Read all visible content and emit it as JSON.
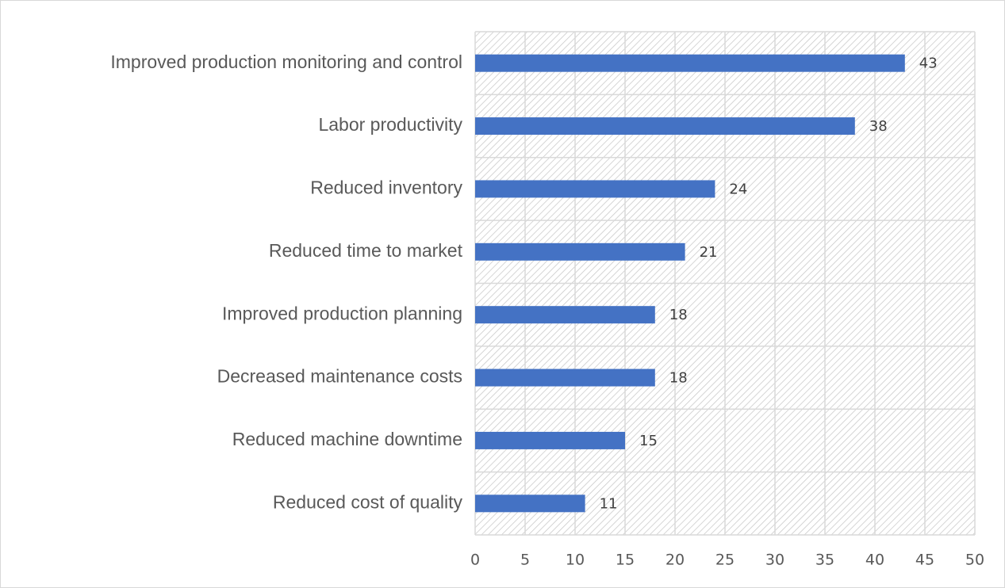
{
  "chart_data": {
    "type": "bar",
    "orientation": "horizontal",
    "categories": [
      "Improved production monitoring and control",
      "Labor productivity",
      "Reduced inventory",
      "Reduced time to market",
      "Improved production planning",
      "Decreased maintenance costs",
      "Reduced machine downtime",
      "Reduced cost of quality"
    ],
    "values": [
      43,
      38,
      24,
      21,
      18,
      18,
      15,
      11
    ],
    "color": "#4472c4",
    "xlim": [
      0,
      50
    ],
    "xticks": [
      0,
      5,
      10,
      15,
      20,
      25,
      30,
      35,
      40,
      45,
      50
    ],
    "grid": true
  }
}
